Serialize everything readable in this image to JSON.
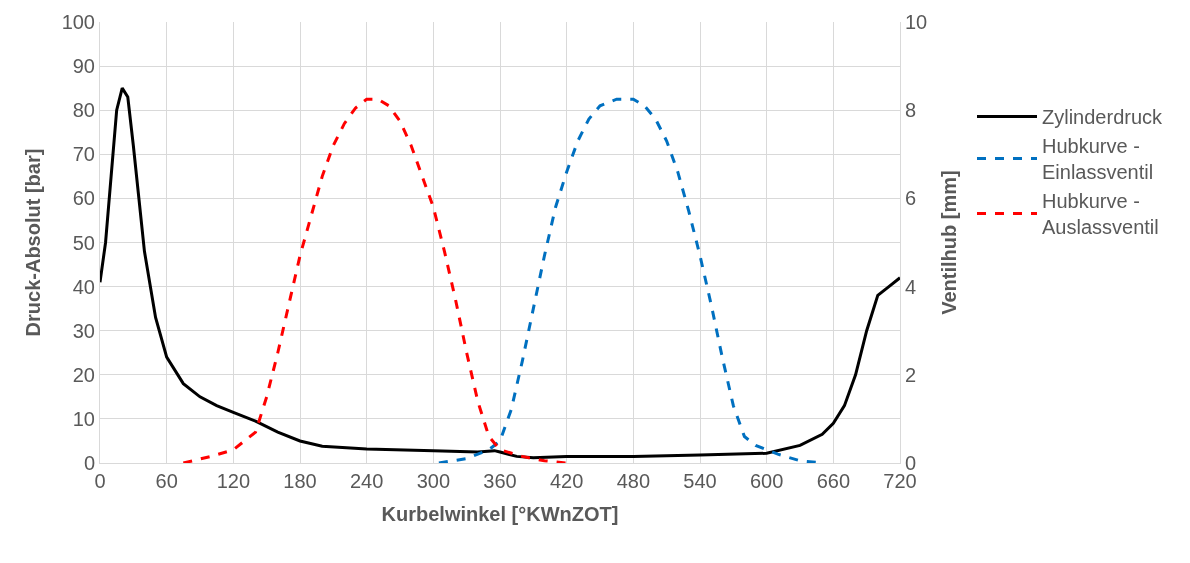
{
  "chart_data": {
    "type": "line",
    "xlabel": "Kurbelwinkel [°KWnZOT]",
    "ylabel": "Druck-Absolut [bar]",
    "y2label": "Ventilhub [mm]",
    "xlim": [
      0,
      720
    ],
    "xticks": [
      0,
      60,
      120,
      180,
      240,
      300,
      360,
      420,
      480,
      540,
      600,
      660,
      720
    ],
    "ylim": [
      0,
      100
    ],
    "yticks": [
      0,
      10,
      20,
      30,
      40,
      50,
      60,
      70,
      80,
      90,
      100
    ],
    "y2lim": [
      0,
      10
    ],
    "y2ticks": [
      0,
      2,
      4,
      6,
      8,
      10
    ],
    "grid": true,
    "legend": "right",
    "marker": "none",
    "series": [
      {
        "name": "Zylinderdruck",
        "color": "#000000",
        "line_style": "solid",
        "x": [
          0,
          5,
          10,
          15,
          20,
          25,
          30,
          35,
          40,
          50,
          60,
          75,
          90,
          105,
          120,
          140,
          160,
          180,
          200,
          240,
          300,
          340,
          355,
          360,
          375,
          390,
          420,
          480,
          540,
          600,
          630,
          650,
          660,
          670,
          680,
          690,
          700,
          710,
          720
        ],
        "values": [
          41,
          50,
          65,
          80,
          85,
          83,
          72,
          60,
          48,
          33,
          24,
          18,
          15,
          13,
          11.5,
          9.5,
          7,
          5,
          3.8,
          3.2,
          2.8,
          2.5,
          2.8,
          2.5,
          1.5,
          1.2,
          1.5,
          1.5,
          1.8,
          2.2,
          4,
          6.5,
          9,
          13,
          20,
          30,
          38,
          40,
          42
        ]
      },
      {
        "name": "Hubkurve - Einlassventil",
        "color": "#0070c0",
        "line_style": "dashed",
        "axis": "y2",
        "x": [
          305,
          330,
          350,
          360,
          370,
          380,
          390,
          400,
          410,
          420,
          430,
          440,
          450,
          465,
          480,
          490,
          500,
          510,
          520,
          530,
          540,
          550,
          560,
          570,
          580,
          590,
          610,
          630,
          650
        ],
        "values": [
          0,
          0.1,
          0.3,
          0.5,
          1.2,
          2.3,
          3.5,
          4.7,
          5.8,
          6.6,
          7.3,
          7.8,
          8.1,
          8.25,
          8.25,
          8.1,
          7.8,
          7.3,
          6.6,
          5.7,
          4.7,
          3.6,
          2.4,
          1.3,
          0.6,
          0.4,
          0.2,
          0.05,
          0
        ]
      },
      {
        "name": "Hubkurve - Auslassventil",
        "color": "#ff0000",
        "line_style": "dashed",
        "axis": "y2",
        "x": [
          75,
          100,
          120,
          140,
          150,
          160,
          170,
          180,
          190,
          200,
          210,
          220,
          230,
          240,
          250,
          260,
          270,
          280,
          290,
          300,
          310,
          320,
          330,
          340,
          350,
          360,
          380,
          400,
          420
        ],
        "values": [
          0,
          0.15,
          0.3,
          0.7,
          1.5,
          2.5,
          3.6,
          4.7,
          5.6,
          6.5,
          7.2,
          7.7,
          8.05,
          8.25,
          8.25,
          8.1,
          7.75,
          7.2,
          6.5,
          5.8,
          4.8,
          3.7,
          2.5,
          1.4,
          0.6,
          0.3,
          0.15,
          0.05,
          0
        ]
      }
    ]
  }
}
